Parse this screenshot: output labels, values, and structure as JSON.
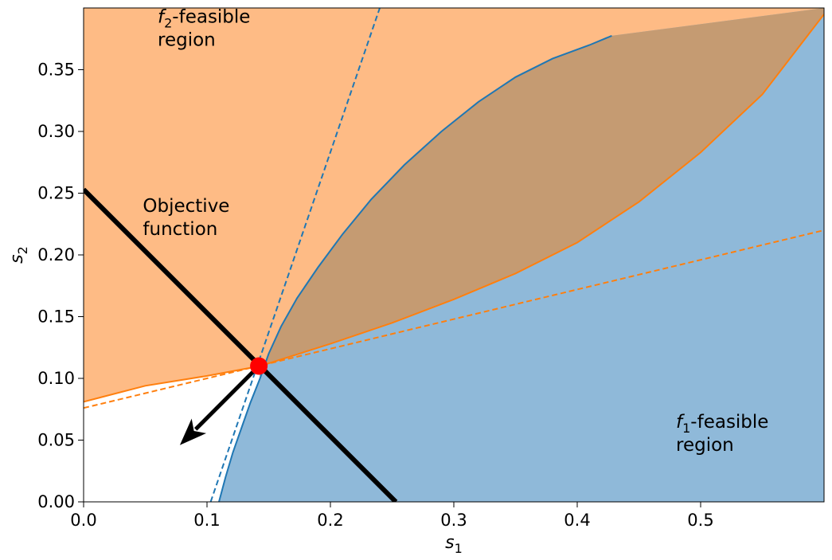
{
  "chart_data": {
    "type": "area",
    "title": "",
    "xlabel": "s",
    "xlabel_sub": "1",
    "ylabel": "s",
    "ylabel_sub": "2",
    "xlim": [
      0,
      0.6
    ],
    "ylim": [
      0,
      0.4
    ],
    "grid": false,
    "xticks": [
      "0.0",
      "0.1",
      "0.2",
      "0.3",
      "0.4",
      "0.5"
    ],
    "yticks": [
      "0.00",
      "0.05",
      "0.10",
      "0.15",
      "0.20",
      "0.25",
      "0.30",
      "0.35"
    ],
    "colors": {
      "f1_fill": "#8fb9d9",
      "f2_fill": "#febb85",
      "overlap_fill": "#c59b72",
      "f1_line": "#1f77b4",
      "f2_line": "#ff7f0e",
      "objective": "#000000",
      "optimum": "#ff0000"
    },
    "series": [
      {
        "name": "f1 boundary",
        "style": "solid",
        "points": [
          [
            0.1097,
            0.0
          ],
          [
            0.115,
            0.02
          ],
          [
            0.121,
            0.04
          ],
          [
            0.128,
            0.06
          ],
          [
            0.135,
            0.08
          ],
          [
            0.143,
            0.1
          ],
          [
            0.15,
            0.12
          ],
          [
            0.16,
            0.142
          ],
          [
            0.173,
            0.165
          ],
          [
            0.19,
            0.19
          ],
          [
            0.21,
            0.217
          ],
          [
            0.233,
            0.245
          ],
          [
            0.26,
            0.273
          ],
          [
            0.29,
            0.3
          ],
          [
            0.32,
            0.324
          ],
          [
            0.35,
            0.344
          ],
          [
            0.38,
            0.359
          ],
          [
            0.41,
            0.37
          ],
          [
            0.428,
            0.3775
          ]
        ]
      },
      {
        "name": "f2 boundary",
        "style": "solid",
        "points": [
          [
            0.0,
            0.081
          ],
          [
            0.05,
            0.094
          ],
          [
            0.1,
            0.102
          ],
          [
            0.143,
            0.11
          ],
          [
            0.2,
            0.128
          ],
          [
            0.25,
            0.145
          ],
          [
            0.3,
            0.164
          ],
          [
            0.35,
            0.185
          ],
          [
            0.4,
            0.21
          ],
          [
            0.45,
            0.243
          ],
          [
            0.5,
            0.283
          ],
          [
            0.55,
            0.33
          ],
          [
            0.6,
            0.395
          ]
        ]
      },
      {
        "name": "f1 tangent",
        "style": "dashed",
        "points": [
          [
            0.103,
            0.0
          ],
          [
            0.24,
            0.4
          ]
        ]
      },
      {
        "name": "f2 tangent",
        "style": "dashed",
        "points": [
          [
            0.0,
            0.076
          ],
          [
            0.6,
            0.22
          ]
        ]
      },
      {
        "name": "Objective function",
        "style": "solid-thick",
        "points": [
          [
            0.0,
            0.253
          ],
          [
            0.253,
            0.0
          ]
        ]
      }
    ],
    "optimum_point": [
      0.142,
      0.11
    ],
    "arrow": {
      "from": [
        0.142,
        0.11
      ],
      "to": [
        0.078,
        0.046
      ]
    },
    "annotations": [
      {
        "key": "f2",
        "symbol": "f",
        "sub": "2",
        "text": "-feasible",
        "line2": " region",
        "at": [
          0.06,
          0.388
        ]
      },
      {
        "key": "objective",
        "text": "Objective",
        "line2": "function",
        "at": [
          0.048,
          0.235
        ]
      },
      {
        "key": "f1",
        "symbol": "f",
        "sub": "1",
        "text": "-feasible",
        "line2": " region",
        "at": [
          0.48,
          0.06
        ]
      }
    ]
  }
}
